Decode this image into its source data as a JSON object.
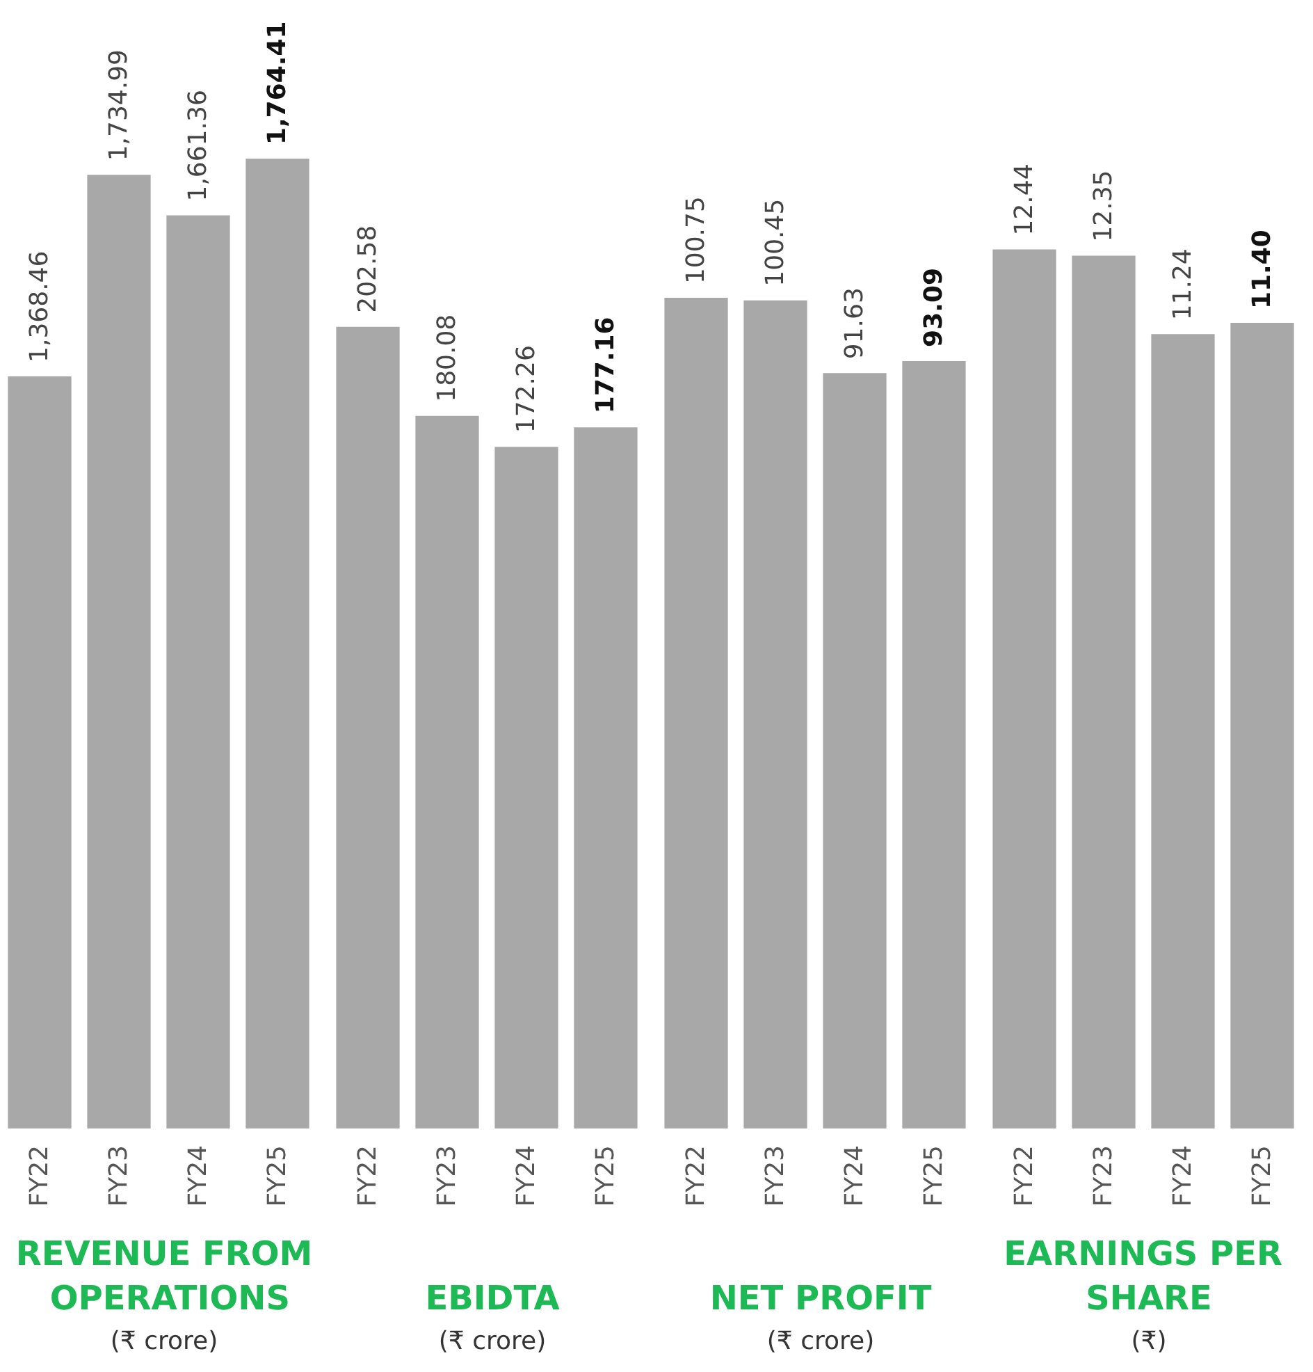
{
  "chart_data": [
    {
      "type": "bar",
      "title": "REVENUE FROM OPERATIONS",
      "subtitle": "(₹ crore)",
      "categories": [
        "FY22",
        "FY23",
        "FY24",
        "FY25"
      ],
      "values": [
        1368.46,
        1734.99,
        1661.36,
        1764.41
      ],
      "value_labels": [
        "1,368.46",
        "1,734.99",
        "1,661.36",
        "1,764.41"
      ],
      "color": "#a8a8a8"
    },
    {
      "type": "bar",
      "title": "EBIDTA",
      "subtitle": "(₹ crore)",
      "categories": [
        "FY22",
        "FY23",
        "FY24",
        "FY25"
      ],
      "values": [
        202.58,
        180.08,
        172.26,
        177.16
      ],
      "value_labels": [
        "202.58",
        "180.08",
        "172.26",
        "177.16"
      ],
      "color": "#a8a8a8"
    },
    {
      "type": "bar",
      "title": "NET PROFIT",
      "subtitle": "(₹ crore)",
      "categories": [
        "FY22",
        "FY23",
        "FY24",
        "FY25"
      ],
      "values": [
        100.75,
        100.45,
        91.63,
        93.09
      ],
      "value_labels": [
        "100.75",
        "100.45",
        "91.63",
        "93.09"
      ],
      "color": "#a8a8a8"
    },
    {
      "type": "bar",
      "title": "EARNINGS PER SHARE",
      "subtitle": "(₹)",
      "categories": [
        "FY22",
        "FY23",
        "FY24",
        "FY25"
      ],
      "values": [
        12.44,
        12.35,
        11.24,
        11.4
      ],
      "value_labels": [
        "12.44",
        "12.35",
        "11.24",
        "11.40"
      ],
      "color": "#a8a8a8"
    }
  ]
}
